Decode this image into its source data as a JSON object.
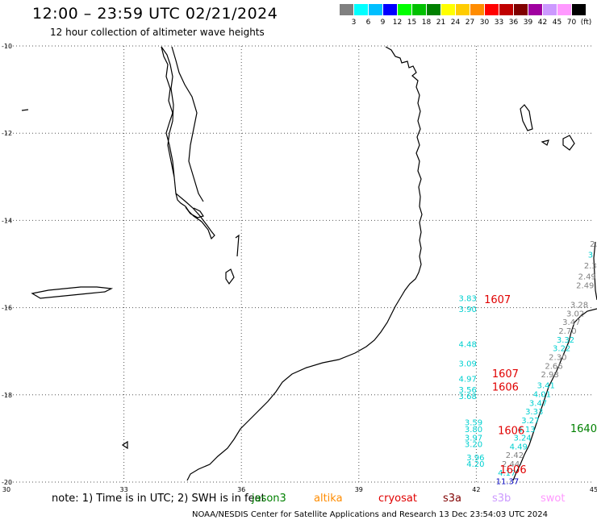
{
  "header": {
    "title": "12:00 – 23:59 UTC 02/21/2024",
    "subtitle": "12 hour collection of altimeter wave heights"
  },
  "color_scale": {
    "colors": [
      "#808080",
      "#00ffff",
      "#00bfff",
      "#0000ff",
      "#00ff00",
      "#00c000",
      "#008000",
      "#ffff00",
      "#ffcc00",
      "#ff8c00",
      "#ff0000",
      "#c00000",
      "#800000",
      "#a000a0",
      "#cc99ff",
      "#ff99ff",
      "#000000"
    ],
    "labels": [
      "3",
      "6",
      "9",
      "12",
      "15",
      "18",
      "21",
      "24",
      "27",
      "30",
      "33",
      "36",
      "39",
      "42",
      "45",
      "70",
      "(ft)"
    ]
  },
  "axes": {
    "lon_ticks": [
      "30",
      "33",
      "36",
      "39",
      "42",
      "45"
    ],
    "lat_ticks": [
      "-10",
      "-12",
      "-14",
      "-16",
      "-18",
      "-20"
    ]
  },
  "wave_heights": [
    {
      "text": "3.83",
      "color": "#00d0d0",
      "lon": 41.55,
      "lat": -15.85
    },
    {
      "text": "3.90",
      "color": "#00d0d0",
      "lon": 41.55,
      "lat": -16.1
    },
    {
      "text": "4.48",
      "color": "#00d0d0",
      "lon": 41.55,
      "lat": -16.9
    },
    {
      "text": "3.09",
      "color": "#00d0d0",
      "lon": 41.55,
      "lat": -17.35
    },
    {
      "text": "4.97",
      "color": "#00d0d0",
      "lon": 41.55,
      "lat": -17.7
    },
    {
      "text": "3.56",
      "color": "#00d0d0",
      "lon": 41.55,
      "lat": -17.95
    },
    {
      "text": "3.68",
      "color": "#00d0d0",
      "lon": 41.55,
      "lat": -18.1
    },
    {
      "text": "3.59",
      "color": "#00d0d0",
      "lon": 41.7,
      "lat": -18.7
    },
    {
      "text": "3.80",
      "color": "#00d0d0",
      "lon": 41.7,
      "lat": -18.85
    },
    {
      "text": "3.97",
      "color": "#00d0d0",
      "lon": 41.7,
      "lat": -19.05
    },
    {
      "text": "3.20",
      "color": "#00d0d0",
      "lon": 41.7,
      "lat": -19.2
    },
    {
      "text": "3.96",
      "color": "#00d0d0",
      "lon": 41.75,
      "lat": -19.5
    },
    {
      "text": "4.20",
      "color": "#00d0d0",
      "lon": 41.75,
      "lat": -19.65
    },
    {
      "text": "2.",
      "color": "#808080",
      "lon": 44.9,
      "lat": -14.6
    },
    {
      "text": "3",
      "color": "#00d0d0",
      "lon": 44.85,
      "lat": -14.85
    },
    {
      "text": "2.3",
      "color": "#808080",
      "lon": 44.75,
      "lat": -15.1
    },
    {
      "text": "2.49",
      "color": "#808080",
      "lon": 44.6,
      "lat": -15.35
    },
    {
      "text": "2.49",
      "color": "#808080",
      "lon": 44.55,
      "lat": -15.55
    },
    {
      "text": "3.28",
      "color": "#808080",
      "lon": 44.4,
      "lat": -16.0
    },
    {
      "text": "3.02",
      "color": "#808080",
      "lon": 44.3,
      "lat": -16.2
    },
    {
      "text": "3.47",
      "color": "#808080",
      "lon": 44.2,
      "lat": -16.4
    },
    {
      "text": "2.70",
      "color": "#808080",
      "lon": 44.1,
      "lat": -16.6
    },
    {
      "text": "3.32",
      "color": "#00d0d0",
      "lon": 44.05,
      "lat": -16.8
    },
    {
      "text": "3.22",
      "color": "#00d0d0",
      "lon": 43.95,
      "lat": -17.0
    },
    {
      "text": "2.30",
      "color": "#808080",
      "lon": 43.85,
      "lat": -17.2
    },
    {
      "text": "2.66",
      "color": "#808080",
      "lon": 43.75,
      "lat": -17.4
    },
    {
      "text": "2.98",
      "color": "#808080",
      "lon": 43.65,
      "lat": -17.6
    },
    {
      "text": "3.41",
      "color": "#00d0d0",
      "lon": 43.55,
      "lat": -17.85
    },
    {
      "text": "4.01",
      "color": "#00d0d0",
      "lon": 43.45,
      "lat": -18.05
    },
    {
      "text": "3.47",
      "color": "#00d0d0",
      "lon": 43.35,
      "lat": -18.25
    },
    {
      "text": "3.33",
      "color": "#00d0d0",
      "lon": 43.25,
      "lat": -18.45
    },
    {
      "text": "3.27",
      "color": "#00d0d0",
      "lon": 43.15,
      "lat": -18.65
    },
    {
      "text": "4.13",
      "color": "#00d0d0",
      "lon": 43.05,
      "lat": -18.85
    },
    {
      "text": "3.24",
      "color": "#00d0d0",
      "lon": 42.95,
      "lat": -19.05
    },
    {
      "text": "4.49",
      "color": "#00d0d0",
      "lon": 42.85,
      "lat": -19.25
    },
    {
      "text": "2.42",
      "color": "#808080",
      "lon": 42.75,
      "lat": -19.45
    },
    {
      "text": "2.44",
      "color": "#808080",
      "lon": 42.65,
      "lat": -19.65
    },
    {
      "text": "4.17",
      "color": "#00d0d0",
      "lon": 42.55,
      "lat": -19.85
    },
    {
      "text": "11.37",
      "color": "#0000c0",
      "lon": 42.5,
      "lat": -20.05
    }
  ],
  "pass_times": [
    {
      "text": "1607",
      "color": "#e00000",
      "lon": 42.2,
      "lat": -15.9
    },
    {
      "text": "1607",
      "color": "#e00000",
      "lon": 42.4,
      "lat": -17.6
    },
    {
      "text": "1606",
      "color": "#e00000",
      "lon": 42.4,
      "lat": -17.9
    },
    {
      "text": "1606",
      "color": "#e00000",
      "lon": 42.55,
      "lat": -18.9
    },
    {
      "text": "1606",
      "color": "#e00000",
      "lon": 42.6,
      "lat": -19.8
    },
    {
      "text": "1640",
      "color": "#008000",
      "lon": 44.4,
      "lat": -18.85
    }
  ],
  "footer": {
    "note": "note:  1) Time is in UTC; 2) SWH is in feet",
    "credit": "NOAA/NESDIS Center for Satellite Applications and Research    13 Dec 23:54:03 UTC 2024"
  },
  "satellites": [
    {
      "name": "jason3",
      "color": "#008000"
    },
    {
      "name": "altika",
      "color": "#ff8c00"
    },
    {
      "name": "cryosat",
      "color": "#e00000"
    },
    {
      "name": "s3a",
      "color": "#800000"
    },
    {
      "name": "s3b",
      "color": "#cc99ff"
    },
    {
      "name": "swot",
      "color": "#ff99ff"
    }
  ]
}
